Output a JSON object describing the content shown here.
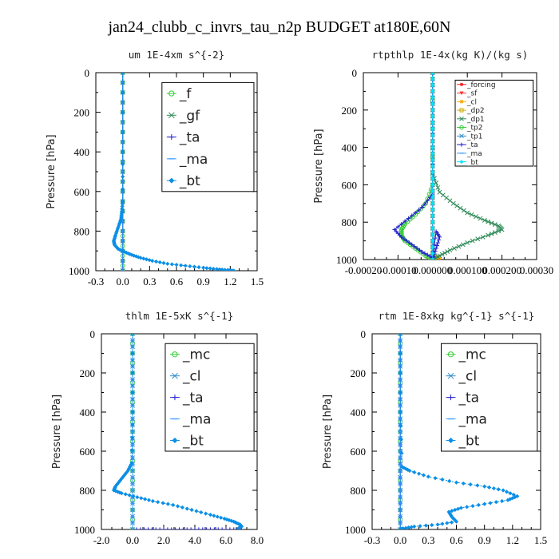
{
  "figure": {
    "title": "jan24_clubb_c_invrs_tau_n2p  BUDGET at180E,60N"
  },
  "chart_data": [
    {
      "id": "um",
      "type": "line",
      "title": "um   1E-4xm s^{-2}",
      "ylabel": "Pressure [hPa]",
      "xlim": [
        -0.3,
        1.5
      ],
      "ylim": [
        1000,
        0
      ],
      "xticks": [
        -0.3,
        0,
        0.3,
        0.6,
        0.9,
        1.2,
        1.5
      ],
      "xtick_labels": [
        "-0.3",
        "0.0",
        "0.3",
        "0.6",
        "0.9",
        "1.2",
        "1.5"
      ],
      "yticks": [
        0,
        200,
        400,
        600,
        800,
        1000
      ],
      "legend_font": 17,
      "legend_box": [
        0.41,
        0.05,
        0.98,
        0.6
      ],
      "series": [
        {
          "name": "_f",
          "color": "#33cc33",
          "marker": "circle",
          "x": [
            0,
            0,
            0,
            0,
            0,
            0,
            0
          ],
          "y": [
            0,
            200,
            400,
            600,
            800,
            900,
            1000
          ]
        },
        {
          "name": "_gf",
          "color": "#2e8b57",
          "marker": "x",
          "x": [
            0,
            0,
            0,
            0,
            0,
            0
          ],
          "y": [
            0,
            200,
            400,
            600,
            800,
            1000
          ]
        },
        {
          "name": "_ta",
          "color": "#2222cc",
          "marker": "plus",
          "x": [
            0,
            0,
            0,
            0,
            0,
            0
          ],
          "y": [
            0,
            200,
            400,
            600,
            800,
            1000
          ]
        },
        {
          "name": "_ma",
          "color": "#3399ff",
          "marker": "dash",
          "x": [
            0,
            0,
            0,
            0,
            0,
            0
          ],
          "y": [
            0,
            200,
            400,
            600,
            800,
            1000
          ]
        },
        {
          "name": "_bt",
          "color": "#0a8fe6",
          "marker": "diamond",
          "x": [
            0,
            0,
            0,
            -0.01,
            -0.02,
            -0.05,
            -0.08,
            -0.1,
            -0.09,
            -0.05,
            0.02,
            0.1,
            0.2,
            0.33,
            0.5,
            0.7,
            0.9,
            1.05,
            1.17,
            1.24
          ],
          "y": [
            0,
            400,
            650,
            700,
            740,
            780,
            820,
            850,
            870,
            890,
            905,
            920,
            935,
            950,
            965,
            975,
            985,
            992,
            997,
            1000
          ]
        }
      ]
    },
    {
      "id": "rtpthlp",
      "type": "line",
      "title": "rtpthlp   1E-4x(kg K)/(kg s)",
      "ylabel": "Pressure [hPa]",
      "xlim": [
        -0.0002,
        0.0003
      ],
      "ylim": [
        1000,
        0
      ],
      "xticks": [
        -0.0002,
        -0.0001,
        0,
        0.0001,
        0.0002,
        0.0003
      ],
      "xtick_labels": [
        "-0.00020",
        "-0.00010",
        "0.000000",
        "0.000100",
        "0.000200",
        "0.00030"
      ],
      "yticks": [
        0,
        200,
        400,
        600,
        800,
        1000
      ],
      "legend_font": 9,
      "legend_box": [
        0.53,
        0.04,
        0.98,
        0.5
      ],
      "series": [
        {
          "name": "_forcing",
          "color": "#ff2020",
          "marker": "dot",
          "x": [
            0,
            0
          ],
          "y": [
            0,
            1000
          ]
        },
        {
          "name": "_sf",
          "color": "#ff3333",
          "marker": "tri",
          "x": [
            0,
            0
          ],
          "y": [
            0,
            1000
          ]
        },
        {
          "name": "_cl",
          "color": "#ffaa00",
          "marker": "star",
          "x": [
            0,
            0,
            0,
            1e-05,
            2e-05,
            0
          ],
          "y": [
            0,
            900,
            970,
            985,
            995,
            1000
          ]
        },
        {
          "name": "_dp2",
          "color": "#ccaa00",
          "marker": "square",
          "x": [
            0,
            0
          ],
          "y": [
            0,
            1000
          ]
        },
        {
          "name": "_dp1",
          "color": "#2e8b57",
          "marker": "x",
          "x": [
            0,
            0,
            2e-05,
            6e-05,
            0.0001,
            0.00015,
            0.00019,
            0.0002,
            0.00016,
            0.0001,
            5e-05,
            2e-05,
            0
          ],
          "y": [
            0,
            540,
            640,
            700,
            750,
            790,
            820,
            840,
            870,
            910,
            950,
            980,
            1000
          ]
        },
        {
          "name": "_tp2",
          "color": "#33cc33",
          "marker": "circle",
          "x": [
            0,
            0,
            -2e-05,
            -5e-05,
            -8e-05,
            -9e-05,
            -9e-05,
            -8e-05,
            -5e-05,
            -2e-05,
            0
          ],
          "y": [
            0,
            600,
            700,
            760,
            810,
            840,
            870,
            900,
            940,
            980,
            1000
          ]
        },
        {
          "name": "_tp1",
          "color": "#2e8bcc",
          "marker": "x",
          "x": [
            0,
            0
          ],
          "y": [
            0,
            1000
          ]
        },
        {
          "name": "_ta",
          "color": "#2222cc",
          "marker": "plus",
          "x": [
            0,
            0,
            -3e-05,
            -7e-05,
            -0.00011,
            -9e-05,
            -6e-05,
            -3e-05,
            0,
            1e-05,
            2e-05,
            1e-05,
            0
          ],
          "y": [
            0,
            650,
            720,
            780,
            840,
            880,
            920,
            960,
            990,
            850,
            880,
            940,
            1000
          ]
        },
        {
          "name": "_ma",
          "color": "#3399ff",
          "marker": "dash",
          "x": [
            0,
            0
          ],
          "y": [
            0,
            1000
          ]
        },
        {
          "name": "_bt",
          "color": "#00e5ff",
          "marker": "diamond",
          "x": [
            0,
            0
          ],
          "y": [
            0,
            1000
          ]
        }
      ]
    },
    {
      "id": "thlm",
      "type": "line",
      "title": "thlm   1E-5xK s^{-1}",
      "ylabel": "Pressure [hPa]",
      "xlim": [
        -2.0,
        8.0
      ],
      "ylim": [
        1000,
        0
      ],
      "xticks": [
        -2,
        0,
        2,
        4,
        6,
        8
      ],
      "xtick_labels": [
        "-2.0",
        "0.0",
        "2.0",
        "4.0",
        "6.0",
        "8.0"
      ],
      "yticks": [
        0,
        200,
        400,
        600,
        800,
        1000
      ],
      "legend_font": 17,
      "legend_box": [
        0.41,
        0.05,
        0.98,
        0.6
      ],
      "series": [
        {
          "name": "_mc",
          "color": "#33cc33",
          "marker": "circle",
          "x": [
            0,
            0,
            0,
            0,
            0,
            0
          ],
          "y": [
            0,
            200,
            400,
            600,
            800,
            1000
          ]
        },
        {
          "name": "_cl",
          "color": "#2e8bcc",
          "marker": "x",
          "x": [
            0,
            0
          ],
          "y": [
            0,
            1000
          ]
        },
        {
          "name": "_ta",
          "color": "#2222cc",
          "marker": "plus",
          "x": [
            0,
            1,
            2,
            3,
            4,
            5,
            6,
            7
          ],
          "y": [
            1000,
            1000,
            1000,
            1000,
            1000,
            1000,
            1000,
            1000
          ]
        },
        {
          "name": "_ma",
          "color": "#3399ff",
          "marker": "dash",
          "x": [
            0,
            0
          ],
          "y": [
            0,
            1000
          ]
        },
        {
          "name": "_bt",
          "color": "#0a8fe6",
          "marker": "diamond",
          "x": [
            0,
            0,
            -0.05,
            -0.3,
            -0.7,
            -1.1,
            -1.2,
            -0.7,
            0.3,
            1.3,
            2.6,
            3.8,
            5.0,
            5.9,
            6.5,
            6.9,
            7.0,
            6.8
          ],
          "y": [
            0,
            400,
            660,
            700,
            740,
            780,
            800,
            815,
            835,
            855,
            875,
            900,
            925,
            945,
            960,
            975,
            985,
            995
          ]
        }
      ]
    },
    {
      "id": "rtm",
      "type": "line",
      "title": "rtm   1E-8xkg kg^{-1} s^{-1}",
      "ylabel": "Pressure [hPa]",
      "xlim": [
        -0.3,
        1.5
      ],
      "ylim": [
        1000,
        0
      ],
      "xticks": [
        -0.3,
        0,
        0.3,
        0.6,
        0.9,
        1.2,
        1.5
      ],
      "xtick_labels": [
        "-0.3",
        "0.0",
        "0.3",
        "0.6",
        "0.9",
        "1.2",
        "1.5"
      ],
      "yticks": [
        0,
        200,
        400,
        600,
        800,
        1000
      ],
      "legend_font": 17,
      "legend_box": [
        0.41,
        0.05,
        0.98,
        0.6
      ],
      "series": [
        {
          "name": "_mc",
          "color": "#33cc33",
          "marker": "circle",
          "x": [
            0,
            0,
            0,
            0,
            0,
            0
          ],
          "y": [
            0,
            200,
            400,
            600,
            800,
            1000
          ]
        },
        {
          "name": "_cl",
          "color": "#2e8bcc",
          "marker": "x",
          "x": [
            0,
            0
          ],
          "y": [
            0,
            1000
          ]
        },
        {
          "name": "_ta",
          "color": "#2222cc",
          "marker": "plus",
          "x": [
            0,
            0
          ],
          "y": [
            0,
            1000
          ]
        },
        {
          "name": "_ma",
          "color": "#3399ff",
          "marker": "dash",
          "x": [
            0,
            0
          ],
          "y": [
            0,
            1000
          ]
        },
        {
          "name": "_bt",
          "color": "#0a8fe6",
          "marker": "diamond",
          "x": [
            0,
            0,
            0.02,
            0.1,
            0.3,
            0.6,
            0.9,
            1.1,
            1.25,
            1.15,
            0.9,
            0.65,
            0.52,
            0.55,
            0.6,
            0.4,
            0.15,
            0.03,
            0
          ],
          "y": [
            0,
            400,
            680,
            700,
            730,
            760,
            780,
            800,
            830,
            850,
            870,
            890,
            910,
            935,
            960,
            975,
            985,
            995,
            1000
          ]
        }
      ]
    }
  ]
}
